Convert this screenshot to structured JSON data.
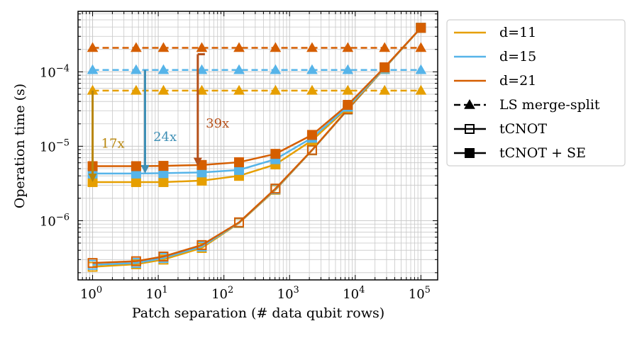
{
  "chart_data": {
    "type": "line",
    "x_scale": "log",
    "y_scale": "log",
    "xlabel": "Patch separation (# data qubit rows)",
    "ylabel": "Operation time (s)",
    "xlim": [
      0.6,
      180000
    ],
    "ylim": [
      1.6e-07,
      0.00065
    ],
    "x_ticks": [
      {
        "value": 1,
        "base": "10",
        "exp": "0"
      },
      {
        "value": 10,
        "base": "10",
        "exp": "1"
      },
      {
        "value": 100,
        "base": "10",
        "exp": "2"
      },
      {
        "value": 1000,
        "base": "10",
        "exp": "3"
      },
      {
        "value": 10000,
        "base": "10",
        "exp": "4"
      },
      {
        "value": 100000,
        "base": "10",
        "exp": "5"
      }
    ],
    "y_ticks": [
      {
        "value": 1e-06,
        "base": "10",
        "exp": "−6"
      },
      {
        "value": 1e-05,
        "base": "10",
        "exp": "−5"
      },
      {
        "value": 0.0001,
        "base": "10",
        "exp": "−4"
      }
    ],
    "grid": true,
    "x": [
      1,
      4.6,
      12,
      46,
      170,
      610,
      2200,
      7700,
      28000,
      100000
    ],
    "colors": {
      "d11": "#e69f00",
      "d15": "#56b4e9",
      "d21": "#d55e00"
    },
    "series": [
      {
        "name": "d=11 LS merge-split",
        "distance": "d11",
        "style": "ls",
        "values": [
          5.6e-05,
          5.6e-05,
          5.6e-05,
          5.6e-05,
          5.6e-05,
          5.6e-05,
          5.6e-05,
          5.6e-05,
          5.6e-05,
          5.6e-05
        ]
      },
      {
        "name": "d=15 LS merge-split",
        "distance": "d15",
        "style": "ls",
        "values": [
          0.000106,
          0.000106,
          0.000106,
          0.000106,
          0.000106,
          0.000106,
          0.000106,
          0.000106,
          0.000106,
          0.000106
        ]
      },
      {
        "name": "d=21 LS merge-split",
        "distance": "d21",
        "style": "ls",
        "values": [
          0.00021,
          0.00021,
          0.00021,
          0.00021,
          0.00021,
          0.00021,
          0.00021,
          0.00021,
          0.00021,
          0.00021
        ]
      },
      {
        "name": "d=11 tCNOT",
        "distance": "d11",
        "style": "tcnot",
        "values": [
          2.4e-07,
          2.6e-07,
          3e-07,
          4.3e-07,
          9.3e-07,
          2.6e-06,
          8.8e-06,
          3.1e-05,
          0.000112,
          0.00039
        ]
      },
      {
        "name": "d=15 tCNOT",
        "distance": "d15",
        "style": "tcnot",
        "values": [
          2.55e-07,
          2.7e-07,
          3.15e-07,
          4.5e-07,
          9.4e-07,
          2.65e-06,
          8.85e-06,
          3.12e-05,
          0.000113,
          0.00039
        ]
      },
      {
        "name": "d=21 tCNOT",
        "distance": "d21",
        "style": "tcnot",
        "values": [
          2.7e-07,
          2.85e-07,
          3.3e-07,
          4.7e-07,
          9.5e-07,
          2.7e-06,
          8.9e-06,
          3.15e-05,
          0.000114,
          0.00039
        ]
      },
      {
        "name": "d=11 tCNOT + SE",
        "distance": "d11",
        "style": "tcnotse",
        "values": [
          3.3e-06,
          3.3e-06,
          3.3e-06,
          3.45e-06,
          4e-06,
          5.7e-06,
          1.2e-05,
          3.3e-05,
          0.000112,
          0.00039
        ]
      },
      {
        "name": "d=15 tCNOT + SE",
        "distance": "d15",
        "style": "tcnotse",
        "values": [
          4.3e-06,
          4.3e-06,
          4.35e-06,
          4.45e-06,
          4.8e-06,
          6.7e-06,
          1.3e-05,
          3.4e-05,
          0.000113,
          0.00039
        ]
      },
      {
        "name": "d=21 tCNOT + SE",
        "distance": "d21",
        "style": "tcnotse",
        "values": [
          5.4e-06,
          5.4e-06,
          5.45e-06,
          5.6e-06,
          6.1e-06,
          7.9e-06,
          1.42e-05,
          3.6e-05,
          0.000115,
          0.00039
        ]
      }
    ],
    "annotations": [
      {
        "text": "17x",
        "distance": "d11",
        "x": 1,
        "y_from": 5.6e-05,
        "y_to": 3.3e-06,
        "label_x": 1.35,
        "label_y": 9.5e-06
      },
      {
        "text": "24x",
        "distance": "d15",
        "x": 6.3,
        "y_from": 0.000106,
        "y_to": 4.3e-06,
        "label_x": 8.4,
        "label_y": 1.17e-05
      },
      {
        "text": "39x",
        "distance": "d21",
        "x": 40,
        "y_from": 0.00021,
        "y_to": 5.4e-06,
        "label_x": 53,
        "label_y": 1.78e-05
      }
    ],
    "legend": {
      "position": "outside-right-top",
      "entries": [
        {
          "label": "d=11",
          "kind": "color",
          "distance": "d11"
        },
        {
          "label": "d=15",
          "kind": "color",
          "distance": "d15"
        },
        {
          "label": "d=21",
          "kind": "color",
          "distance": "d21"
        },
        {
          "label": "LS merge-split",
          "kind": "style",
          "style": "ls"
        },
        {
          "label": "tCNOT",
          "kind": "style",
          "style": "tcnot"
        },
        {
          "label": "tCNOT + SE",
          "kind": "style",
          "style": "tcnotse"
        }
      ]
    }
  }
}
